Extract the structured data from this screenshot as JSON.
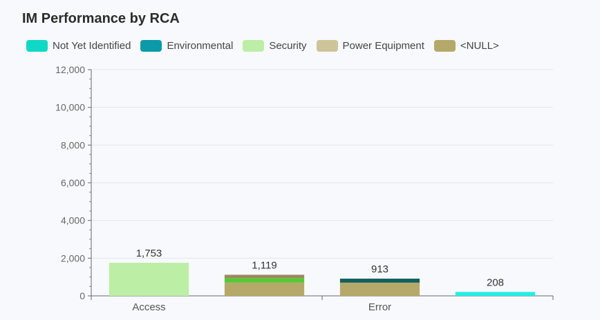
{
  "title": "IM Performance by RCA",
  "legend": [
    {
      "label": "Not Yet Identified",
      "color": "#0fd9c6"
    },
    {
      "label": "Environmental",
      "color": "#0a9aa8"
    },
    {
      "label": "Security",
      "color": "#bdeea6"
    },
    {
      "label": "Power Equipment",
      "color": "#cdc49a"
    },
    {
      "label": "<NULL>",
      "color": "#b5a96a"
    }
  ],
  "chart_data": {
    "type": "bar",
    "stacked": true,
    "title": "IM Performance by RCA",
    "xlabel": "",
    "ylabel": "",
    "ylim": [
      0,
      12000
    ],
    "yticks": [
      "0",
      "2,000",
      "4,000",
      "6,000",
      "8,000",
      "10,000",
      "12,000"
    ],
    "ytick_values": [
      0,
      2000,
      4000,
      6000,
      8000,
      10000,
      12000
    ],
    "grid": true,
    "legend_position": "top-left",
    "categories": [
      "Access",
      "",
      "Error",
      ""
    ],
    "totals": [
      "1,753",
      "1,119",
      "913",
      "208"
    ],
    "bars": [
      {
        "category": "Access",
        "total": 1753,
        "segments": [
          {
            "value": 1753,
            "color": "#bdeea6"
          }
        ]
      },
      {
        "category": "",
        "total": 1119,
        "segments": [
          {
            "value": 700,
            "color": "#b5a96a"
          },
          {
            "value": 240,
            "color": "#57c835"
          },
          {
            "value": 179,
            "color": "#9b8a5e"
          }
        ]
      },
      {
        "category": "Error",
        "total": 913,
        "segments": [
          {
            "value": 700,
            "color": "#b5a96a"
          },
          {
            "value": 213,
            "color": "#10605e"
          }
        ]
      },
      {
        "category": "",
        "total": 208,
        "segments": [
          {
            "value": 208,
            "color": "#24efe6"
          }
        ]
      }
    ]
  }
}
